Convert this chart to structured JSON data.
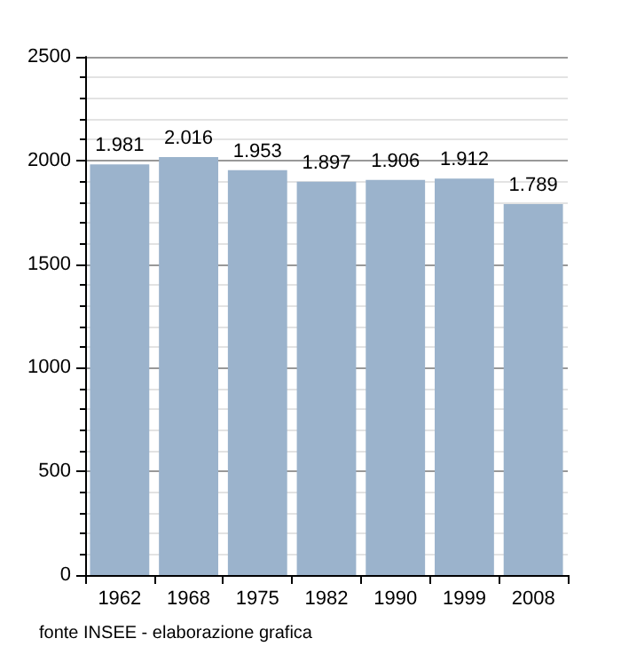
{
  "chart_data": {
    "type": "bar",
    "categories": [
      "1962",
      "1968",
      "1975",
      "1982",
      "1990",
      "1999",
      "2008"
    ],
    "values": [
      1981,
      2016,
      1953,
      1897,
      1906,
      1912,
      1789
    ],
    "value_labels": [
      "1.981",
      "2.016",
      "1.953",
      "1.897",
      "1.906",
      "1.912",
      "1.789"
    ],
    "color": "#9bb3cc",
    "ylim": [
      0,
      2500
    ],
    "yticks": [
      0,
      500,
      1000,
      1500,
      2000,
      2500
    ],
    "grid": "y",
    "annotations": [
      "fonte INSEE - elaborazione grafica"
    ]
  }
}
